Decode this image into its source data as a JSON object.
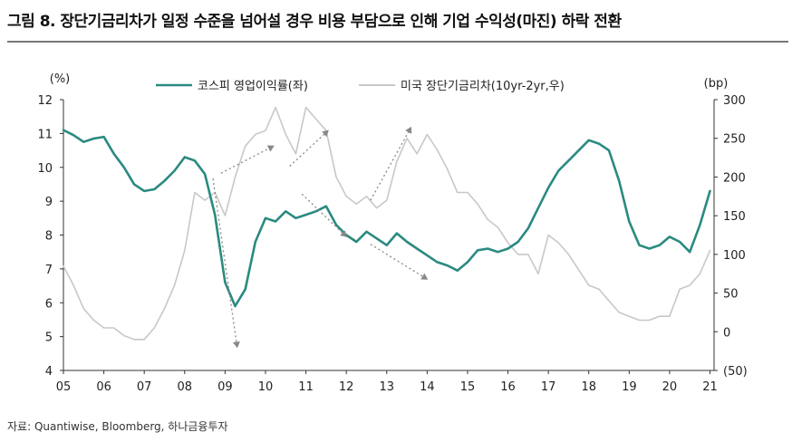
{
  "title": "그림 8. 장단기금리차가 일정 수준을 넘어설 경우 비용 부담으로 인해 기업 수익성(마진) 하락 전환",
  "source": "자료: Quantiwise, Bloomberg, 하나금융투자",
  "chart_data": {
    "type": "line",
    "left_axis": {
      "unit": "(%)",
      "ylim": [
        4,
        12
      ],
      "ticks": [
        "4",
        "5",
        "6",
        "7",
        "8",
        "9",
        "10",
        "11",
        "12"
      ]
    },
    "right_axis": {
      "unit": "(bp)",
      "ylim": [
        -50,
        300
      ],
      "ticks": [
        "(50)",
        "0",
        "50",
        "100",
        "150",
        "200",
        "250",
        "300"
      ]
    },
    "x_ticks": [
      "05",
      "06",
      "07",
      "08",
      "09",
      "10",
      "11",
      "12",
      "13",
      "14",
      "15",
      "16",
      "17",
      "18",
      "19",
      "20",
      "21"
    ],
    "xlim": [
      2005,
      21.0
    ],
    "legend_position": "top",
    "series": [
      {
        "name": "코스피 영업이익률(좌)",
        "axis": "left",
        "color": "#2a8a80",
        "x": [
          2005.0,
          2005.25,
          2005.5,
          2005.75,
          2006.0,
          2006.25,
          2006.5,
          2006.75,
          2007.0,
          2007.25,
          2007.5,
          2007.75,
          2008.0,
          2008.25,
          2008.5,
          2008.75,
          2009.0,
          2009.25,
          2009.5,
          2009.75,
          2010.0,
          2010.25,
          2010.5,
          2010.75,
          2011.0,
          2011.25,
          2011.5,
          2011.75,
          2012.0,
          2012.25,
          2012.5,
          2012.75,
          2013.0,
          2013.25,
          2013.5,
          2013.75,
          2014.0,
          2014.25,
          2014.5,
          2014.75,
          2015.0,
          2015.25,
          2015.5,
          2015.75,
          2016.0,
          2016.25,
          2016.5,
          2016.75,
          2017.0,
          2017.25,
          2017.5,
          2017.75,
          2018.0,
          2018.25,
          2018.5,
          2018.75,
          2019.0,
          2019.25,
          2019.5,
          2019.75,
          2020.0,
          2020.25,
          2020.5,
          2020.75,
          2021.0
        ],
        "y": [
          11.1,
          10.95,
          10.75,
          10.85,
          10.9,
          10.4,
          10.0,
          9.5,
          9.3,
          9.35,
          9.6,
          9.9,
          10.3,
          10.2,
          9.8,
          8.6,
          6.6,
          5.9,
          6.4,
          7.8,
          8.5,
          8.4,
          8.7,
          8.5,
          8.6,
          8.7,
          8.85,
          8.3,
          8.0,
          7.8,
          8.1,
          7.9,
          7.7,
          8.05,
          7.8,
          7.6,
          7.4,
          7.2,
          7.1,
          6.95,
          7.2,
          7.55,
          7.6,
          7.5,
          7.6,
          7.8,
          8.2,
          8.8,
          9.4,
          9.9,
          10.2,
          10.5,
          10.8,
          10.7,
          10.5,
          9.6,
          8.4,
          7.7,
          7.6,
          7.7,
          7.95,
          7.8,
          7.5,
          8.3,
          9.3
        ]
      },
      {
        "name": "미국 장단기금리차(10yr-2yr,우)",
        "axis": "right",
        "color": "#c8c8c8",
        "x": [
          2005.0,
          2005.25,
          2005.5,
          2005.75,
          2006.0,
          2006.25,
          2006.5,
          2006.75,
          2007.0,
          2007.25,
          2007.5,
          2007.75,
          2008.0,
          2008.25,
          2008.5,
          2008.75,
          2009.0,
          2009.25,
          2009.5,
          2009.75,
          2010.0,
          2010.25,
          2010.5,
          2010.75,
          2011.0,
          2011.25,
          2011.5,
          2011.75,
          2012.0,
          2012.25,
          2012.5,
          2012.75,
          2013.0,
          2013.25,
          2013.5,
          2013.75,
          2014.0,
          2014.25,
          2014.5,
          2014.75,
          2015.0,
          2015.25,
          2015.5,
          2015.75,
          2016.0,
          2016.25,
          2016.5,
          2016.75,
          2017.0,
          2017.25,
          2017.5,
          2017.75,
          2018.0,
          2018.25,
          2018.5,
          2018.75,
          2019.0,
          2019.25,
          2019.5,
          2019.75,
          2020.0,
          2020.25,
          2020.5,
          2020.75,
          2021.0
        ],
        "y": [
          85,
          60,
          30,
          15,
          5,
          5,
          -5,
          -10,
          -10,
          5,
          30,
          60,
          105,
          180,
          170,
          180,
          150,
          200,
          240,
          255,
          260,
          290,
          255,
          230,
          290,
          275,
          260,
          200,
          175,
          165,
          175,
          160,
          170,
          220,
          250,
          230,
          255,
          235,
          210,
          180,
          180,
          165,
          145,
          135,
          115,
          100,
          100,
          75,
          125,
          115,
          100,
          80,
          60,
          55,
          40,
          25,
          20,
          15,
          15,
          20,
          20,
          55,
          60,
          75,
          105
        ]
      }
    ],
    "annotation_arrows": [
      {
        "from": [
          2008.7,
          198
        ],
        "to": [
          2009.3,
          -20
        ],
        "color": "#888888"
      },
      {
        "from": [
          2008.9,
          205
        ],
        "to": [
          2010.2,
          240
        ],
        "color": "#888888"
      },
      {
        "from": [
          2010.6,
          214
        ],
        "to": [
          2011.55,
          260
        ],
        "color": "#888888"
      },
      {
        "from": [
          2010.9,
          178
        ],
        "to": [
          2012.0,
          123
        ],
        "color": "#888888"
      },
      {
        "from": [
          2012.6,
          113
        ],
        "to": [
          2014.0,
          68
        ],
        "color": "#888888"
      },
      {
        "from": [
          2012.6,
          170
        ],
        "to": [
          2013.6,
          264
        ],
        "color": "#888888"
      }
    ]
  }
}
